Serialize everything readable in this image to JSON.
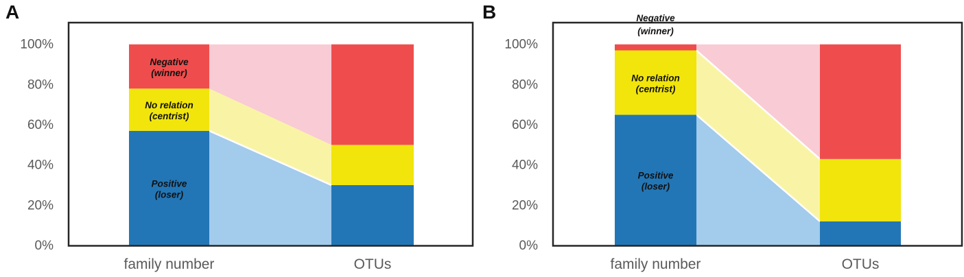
{
  "figure": {
    "type": "dual-panel-100%-stacked-bar-flow",
    "background": "#ffffff",
    "frame_color": "#262626",
    "axis_text_color": "#595959",
    "label_text_color": "#111111",
    "seam_color": "#ffffff"
  },
  "chart_data": [
    {
      "type": "bar",
      "subtype": "100%-stacked-columns-with-flow-ribbons",
      "panel_label": "A",
      "categories": [
        "family number",
        "OTUs"
      ],
      "series": [
        {
          "name": "Positive (loser)",
          "values": [
            57,
            30
          ],
          "color": "#2376B5",
          "ribbon_color": "#A2CBEC"
        },
        {
          "name": "No relation (centrist)",
          "values": [
            21,
            20
          ],
          "color": "#F1E50C",
          "ribbon_color": "#F9F4A5"
        },
        {
          "name": "Negative (winner)",
          "values": [
            22,
            50
          ],
          "color": "#EF4D4D",
          "ribbon_color": "#F9CBD4"
        }
      ],
      "ylim": [
        0,
        100
      ],
      "y_ticks": [
        {
          "value": 0,
          "label": "0%"
        },
        {
          "value": 20,
          "label": "20%"
        },
        {
          "value": 40,
          "label": "40%"
        },
        {
          "value": 60,
          "label": "60%"
        },
        {
          "value": 80,
          "label": "80%"
        },
        {
          "value": 100,
          "label": "100%"
        }
      ],
      "segment_labels": [
        {
          "series_index": 2,
          "lines": [
            "Negative",
            "(winner)"
          ],
          "placement": "inside"
        },
        {
          "series_index": 1,
          "lines": [
            "No relation",
            "(centrist)"
          ],
          "placement": "inside"
        },
        {
          "series_index": 0,
          "lines": [
            "Positive",
            "(loser)"
          ],
          "placement": "inside"
        }
      ],
      "ribbon_seams_above_series": [
        0
      ],
      "grid": false,
      "legend": "none"
    },
    {
      "type": "bar",
      "subtype": "100%-stacked-columns-with-flow-ribbons",
      "panel_label": "B",
      "categories": [
        "family number",
        "OTUs"
      ],
      "series": [
        {
          "name": "Positive (loser)",
          "values": [
            65,
            12
          ],
          "color": "#2376B5",
          "ribbon_color": "#A2CBEC"
        },
        {
          "name": "No relation (centrist)",
          "values": [
            32,
            31
          ],
          "color": "#F1E50C",
          "ribbon_color": "#F9F4A5"
        },
        {
          "name": "Negative (winner)",
          "values": [
            3,
            57
          ],
          "color": "#EF4D4D",
          "ribbon_color": "#F9CBD4"
        }
      ],
      "ylim": [
        0,
        100
      ],
      "y_ticks": [
        {
          "value": 0,
          "label": "0%"
        },
        {
          "value": 20,
          "label": "20%"
        },
        {
          "value": 40,
          "label": "40%"
        },
        {
          "value": 60,
          "label": "60%"
        },
        {
          "value": 80,
          "label": "80%"
        },
        {
          "value": 100,
          "label": "100%"
        }
      ],
      "segment_labels": [
        {
          "series_index": 2,
          "lines": [
            "Negative",
            "(winner)"
          ],
          "placement": "above_frame"
        },
        {
          "series_index": 1,
          "lines": [
            "No relation",
            "(centrist)"
          ],
          "placement": "inside"
        },
        {
          "series_index": 0,
          "lines": [
            "Positive",
            "(loser)"
          ],
          "placement": "inside"
        }
      ],
      "ribbon_seams_above_series": [
        0,
        1
      ],
      "grid": false,
      "legend": "none"
    }
  ]
}
